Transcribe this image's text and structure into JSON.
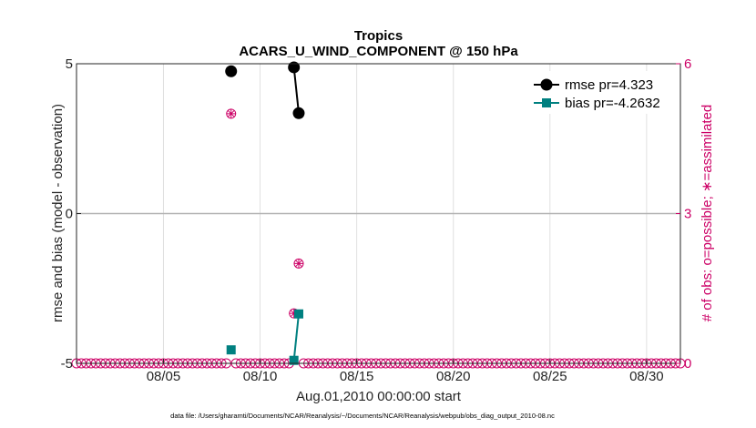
{
  "chart_data": {
    "type": "line",
    "title": "Tropics",
    "subtitle": "ACARS_U_WIND_COMPONENT @ 150 hPa",
    "xlabel": "Aug.01,2010 00:00:00 start",
    "ylabel": "rmse and bias (model - observation)",
    "ylabel_right": "# of obs: o=possible; ∗=assimilated",
    "footnote": "data file: /Users/gharamti/Documents/NCAR/Reanalysis/~/Documents/NCAR/Reanalysis/webpub/obs_diag_output_2010-08.nc",
    "xlim": [
      0.5,
      31.75
    ],
    "ylim": [
      -5,
      5
    ],
    "ylim_right": [
      0,
      6
    ],
    "x_ticks": [
      5,
      10,
      15,
      20,
      25,
      30
    ],
    "x_tick_labels": [
      "08/05",
      "08/10",
      "08/15",
      "08/20",
      "08/25",
      "08/30"
    ],
    "y_ticks": [
      -5,
      0,
      5
    ],
    "y_tick_labels": [
      "-5",
      "0",
      "5"
    ],
    "y_right_ticks": [
      0,
      3,
      6
    ],
    "y_right_tick_labels": [
      "0",
      "3",
      "6"
    ],
    "grid": "vertical",
    "zero_line": 0,
    "legend_position": "top-right",
    "colors": {
      "rmse": "#000000",
      "bias": "#008080",
      "obs": "#cc0066",
      "zero_line": "#b3b3b3",
      "grid": "#e0e0e0"
    },
    "series": [
      {
        "name": "rmse pr=4.323",
        "key": "rmse",
        "axis": "left",
        "color": "#000000",
        "points": [
          [
            8.5,
            4.75
          ],
          [
            11.75,
            4.88
          ],
          [
            12.0,
            3.35
          ]
        ],
        "segments": [
          [
            1,
            2
          ]
        ]
      },
      {
        "name": "bias pr=-4.2632",
        "key": "bias",
        "axis": "left",
        "color": "#008080",
        "points": [
          [
            8.5,
            -4.55
          ],
          [
            11.75,
            -4.9
          ],
          [
            12.0,
            -3.35
          ]
        ],
        "segments": [
          [
            1,
            2
          ]
        ]
      }
    ],
    "obs_possible": {
      "axis": "right",
      "x": [
        0.5,
        0.75,
        1,
        1.25,
        1.5,
        1.75,
        2,
        2.25,
        2.5,
        2.75,
        3,
        3.25,
        3.5,
        3.75,
        4,
        4.25,
        4.5,
        4.75,
        5,
        5.25,
        5.5,
        5.75,
        6,
        6.25,
        6.5,
        6.75,
        7,
        7.25,
        7.5,
        7.75,
        8,
        8.25,
        8.5,
        8.75,
        9,
        9.25,
        9.5,
        9.75,
        10,
        10.25,
        10.5,
        10.75,
        11,
        11.25,
        11.5,
        11.75,
        12,
        12.25,
        12.5,
        12.75,
        13,
        13.25,
        13.5,
        13.75,
        14,
        14.25,
        14.5,
        14.75,
        15,
        15.25,
        15.5,
        15.75,
        16,
        16.25,
        16.5,
        16.75,
        17,
        17.25,
        17.5,
        17.75,
        18,
        18.25,
        18.5,
        18.75,
        19,
        19.25,
        19.5,
        19.75,
        20,
        20.25,
        20.5,
        20.75,
        21,
        21.25,
        21.5,
        21.75,
        22,
        22.25,
        22.5,
        22.75,
        23,
        23.25,
        23.5,
        23.75,
        24,
        24.25,
        24.5,
        24.75,
        25,
        25.25,
        25.5,
        25.75,
        26,
        26.25,
        26.5,
        26.75,
        27,
        27.25,
        27.5,
        27.75,
        28,
        28.25,
        28.5,
        28.75,
        29,
        29.25,
        29.5,
        29.75,
        30,
        30.25,
        30.5,
        30.75,
        31,
        31.25,
        31.5,
        31.75
      ],
      "y": [
        0,
        0,
        0,
        0,
        0,
        0,
        0,
        0,
        0,
        0,
        0,
        0,
        0,
        0,
        0,
        0,
        0,
        0,
        0,
        0,
        0,
        0,
        0,
        0,
        0,
        0,
        0,
        0,
        0,
        0,
        0,
        0,
        5,
        0,
        0,
        0,
        0,
        0,
        0,
        0,
        0,
        0,
        0,
        0,
        0,
        1,
        2,
        0,
        0,
        0,
        0,
        0,
        0,
        0,
        0,
        0,
        0,
        0,
        0,
        0,
        0,
        0,
        0,
        0,
        0,
        0,
        0,
        0,
        0,
        0,
        0,
        0,
        0,
        0,
        0,
        0,
        0,
        0,
        0,
        0,
        0,
        0,
        0,
        0,
        0,
        0,
        0,
        0,
        0,
        0,
        0,
        0,
        0,
        0,
        0,
        0,
        0,
        0,
        0,
        0,
        0,
        0,
        0,
        0,
        0,
        0,
        0,
        0,
        0,
        0,
        0,
        0,
        0,
        0,
        0,
        0,
        0,
        0,
        0,
        0,
        0,
        0,
        0,
        0,
        0,
        0
      ]
    },
    "obs_assimilated": {
      "axis": "right",
      "x": [
        8.5,
        11.75,
        12.0
      ],
      "y": [
        5,
        1,
        2
      ]
    }
  }
}
